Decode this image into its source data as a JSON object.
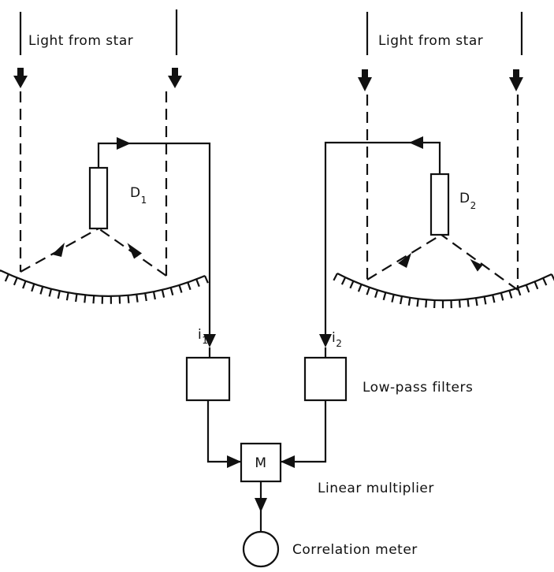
{
  "labels": {
    "light_left": "Light from star",
    "light_right": "Light from star",
    "detector_1": "D",
    "detector_1_sub": "1",
    "detector_2": "D",
    "detector_2_sub": "2",
    "current_1": "i",
    "current_1_sub": "1",
    "current_2": "i",
    "current_2_sub": "2",
    "filters": "Low-pass filters",
    "multiplier_box": "M",
    "multiplier": "Linear multiplier",
    "meter": "Correlation meter"
  },
  "colors": {
    "ink": "#111111",
    "background": "#ffffff"
  }
}
